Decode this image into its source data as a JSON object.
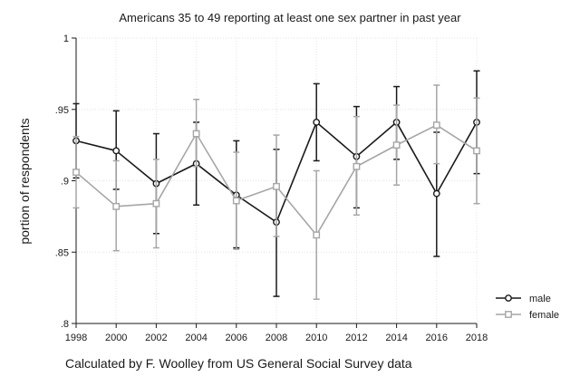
{
  "chart_data": {
    "type": "line",
    "title": "Americans 35 to 49 reporting at least one sex partner in past year",
    "ylabel": "portion of respondents",
    "caption": "Calculated by F. Woolley from US General Social Survey data",
    "x": [
      1998,
      2000,
      2002,
      2004,
      2006,
      2008,
      2010,
      2012,
      2014,
      2016,
      2018
    ],
    "x_ticks": [
      "1998",
      "2000",
      "2002",
      "2004",
      "2006",
      "2008",
      "2010",
      "2012",
      "2014",
      "2016",
      "2018"
    ],
    "y_ticks": [
      {
        "value": 0.8,
        "label": ".8"
      },
      {
        "value": 0.85,
        "label": ".85"
      },
      {
        "value": 0.9,
        "label": ".9"
      },
      {
        "value": 0.95,
        "label": ".95"
      },
      {
        "value": 1.0,
        "label": "1"
      }
    ],
    "xlim": [
      1998,
      2018
    ],
    "ylim": [
      0.8,
      1.0
    ],
    "grid": true,
    "legend_position": "right",
    "series": [
      {
        "name": "male",
        "color": "#1a1a1a",
        "marker": "circle",
        "values": [
          0.928,
          0.921,
          0.898,
          0.912,
          0.89,
          0.871,
          0.941,
          0.917,
          0.941,
          0.891,
          0.941
        ],
        "ci_low": [
          0.902,
          0.894,
          0.863,
          0.883,
          0.853,
          0.819,
          0.914,
          0.881,
          0.915,
          0.847,
          0.905
        ],
        "ci_high": [
          0.954,
          0.949,
          0.933,
          0.941,
          0.928,
          0.922,
          0.968,
          0.952,
          0.966,
          0.934,
          0.977
        ]
      },
      {
        "name": "female",
        "color": "#a6a6a6",
        "marker": "square",
        "values": [
          0.906,
          0.882,
          0.884,
          0.933,
          0.886,
          0.896,
          0.862,
          0.91,
          0.925,
          0.939,
          0.921
        ],
        "ci_low": [
          0.881,
          0.851,
          0.853,
          0.91,
          0.852,
          0.861,
          0.817,
          0.876,
          0.897,
          0.912,
          0.884
        ],
        "ci_high": [
          0.931,
          0.914,
          0.915,
          0.957,
          0.92,
          0.932,
          0.907,
          0.945,
          0.953,
          0.967,
          0.958
        ]
      }
    ]
  }
}
